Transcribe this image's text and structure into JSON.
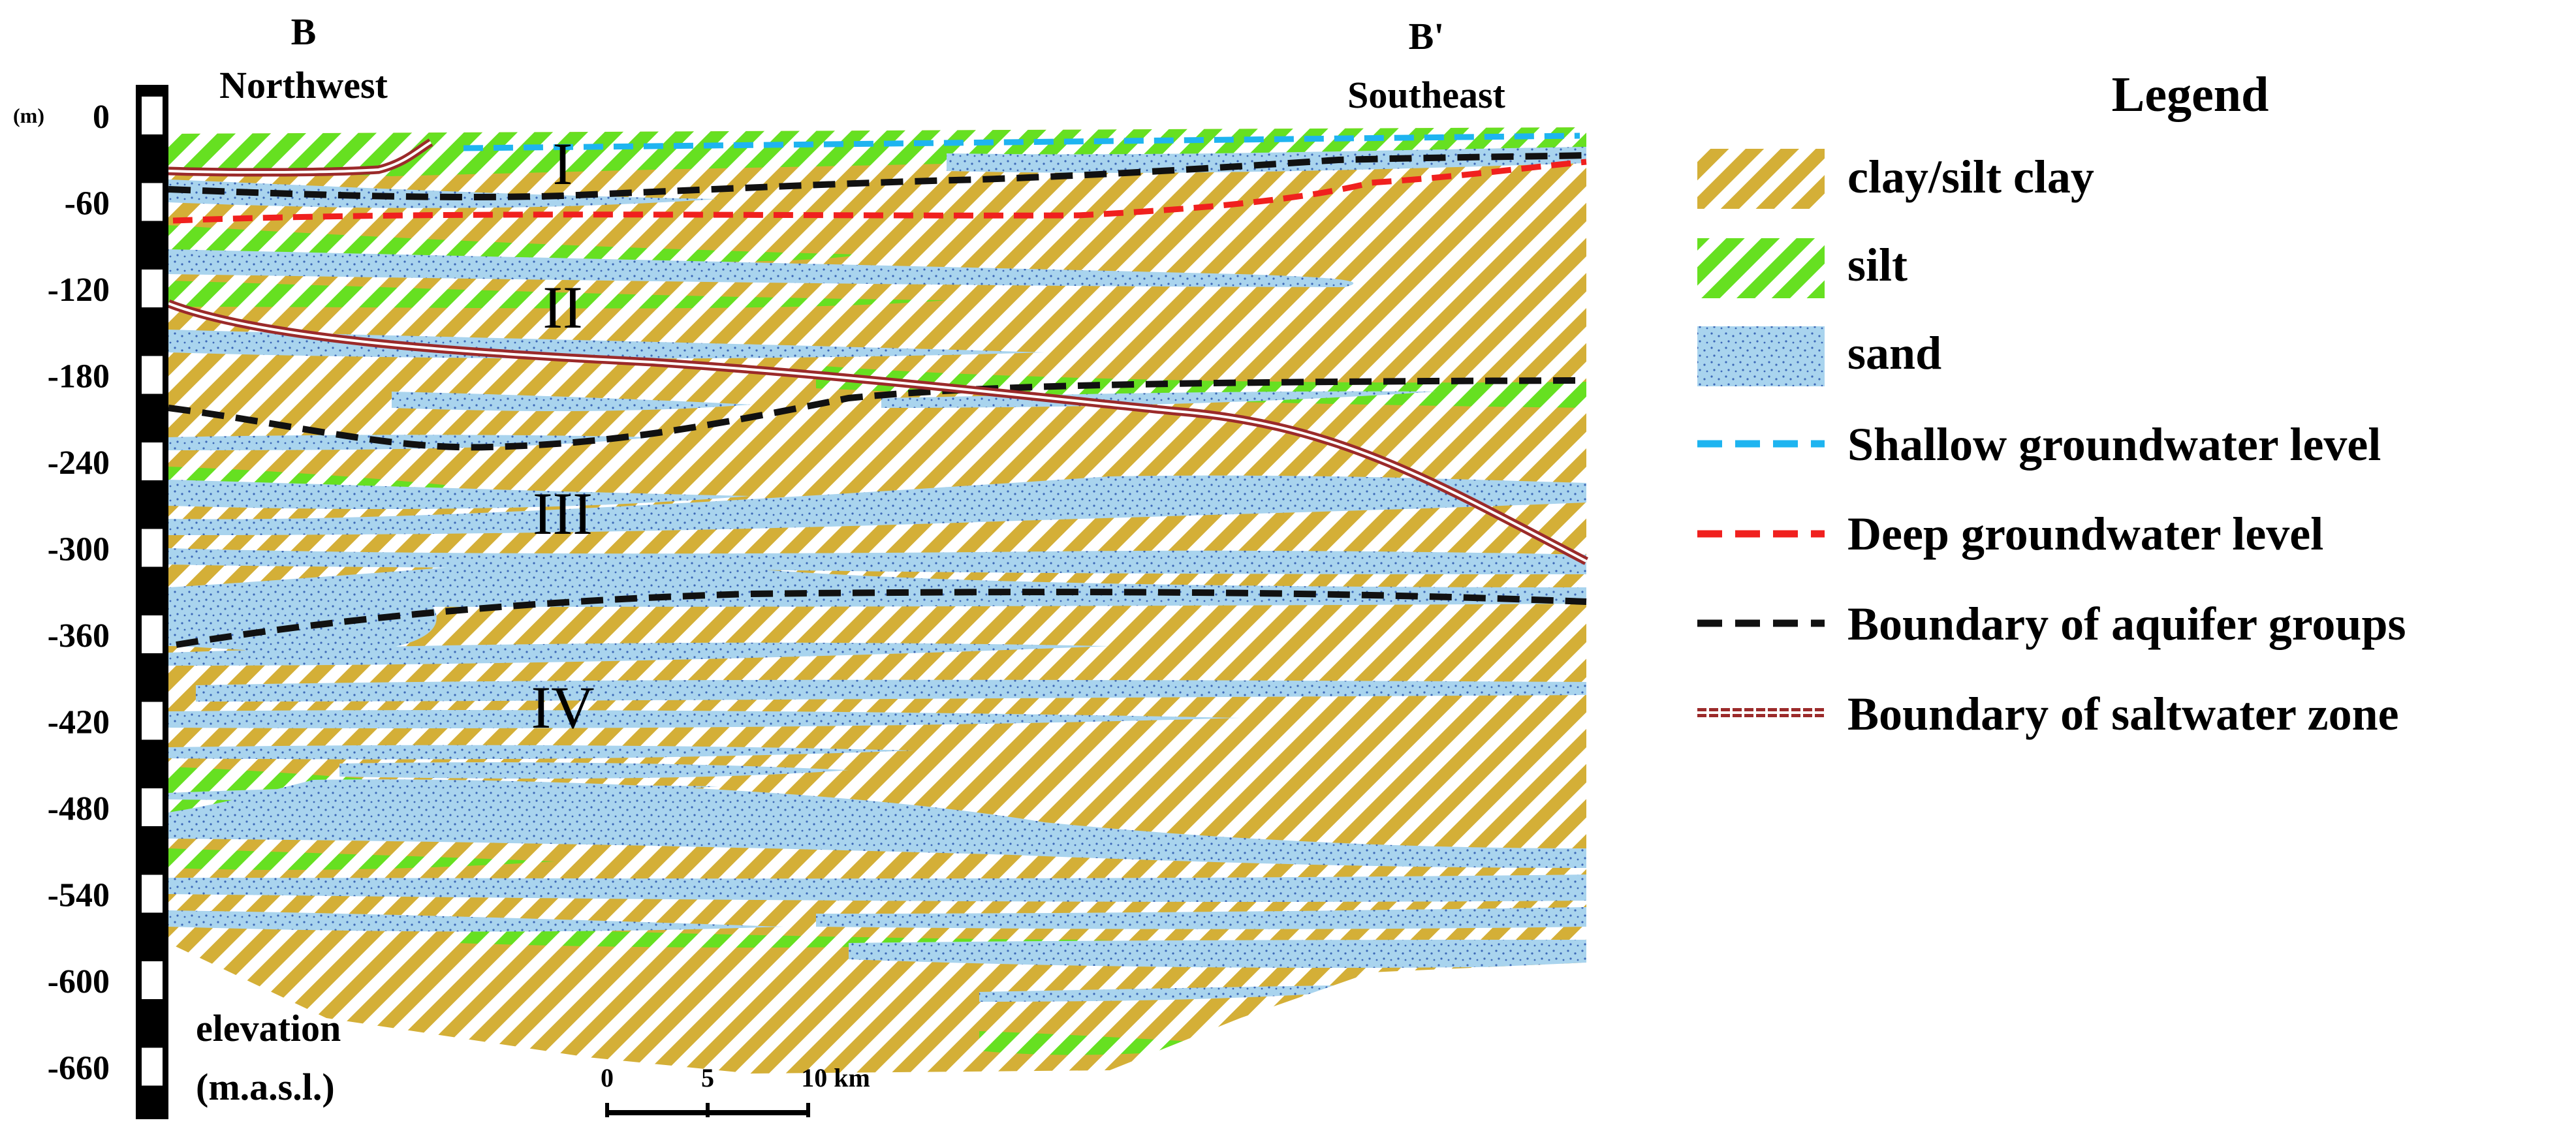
{
  "section": {
    "left_label": "B",
    "left_direction": "Northwest",
    "right_label": "B'",
    "right_direction": "Southeast"
  },
  "elevation_axis": {
    "unit_label": "(m)",
    "ticks": [
      "0",
      "-60",
      "-120",
      "-180",
      "-240",
      "-300",
      "-360",
      "-420",
      "-480",
      "-540",
      "-600",
      "-660"
    ],
    "title_line1": "elevation",
    "title_line2": "(m.a.s.l.)"
  },
  "aquifer_groups": [
    "I",
    "II",
    "III",
    "IV"
  ],
  "scale_bar": {
    "labels": [
      "0",
      "5",
      "10 km"
    ]
  },
  "legend": {
    "title": "Legend",
    "items": [
      {
        "label": "clay/silt clay",
        "swatch": "clay-hatch",
        "color": "#D4AF37"
      },
      {
        "label": "silt",
        "swatch": "silt-hatch",
        "color": "#66E021"
      },
      {
        "label": "sand",
        "swatch": "sand-dots",
        "color": "#A9D4EE"
      },
      {
        "label": "Shallow groundwater level",
        "swatch": "dash",
        "color": "#1EB4F0"
      },
      {
        "label": "Deep groundwater level",
        "swatch": "dash",
        "color": "#F0201E"
      },
      {
        "label": "Boundary of aquifer groups",
        "swatch": "dash",
        "color": "#111111"
      },
      {
        "label": "Boundary of saltwater zone",
        "swatch": "double-line",
        "color": "#9B2A2A"
      }
    ]
  }
}
